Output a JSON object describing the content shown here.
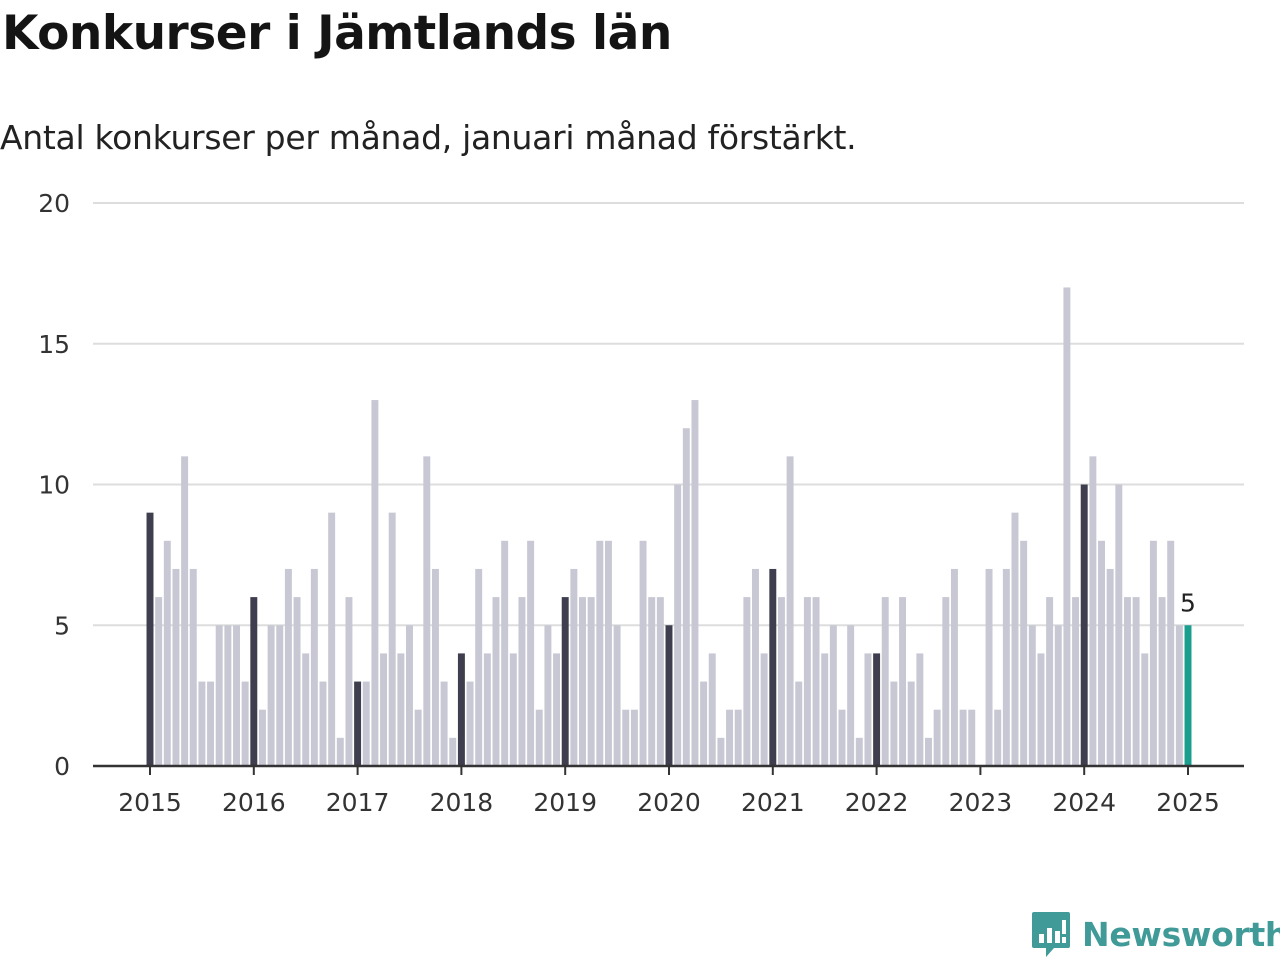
{
  "title": "Konkurser i Jämtlands län",
  "subtitle": "Antal konkurser per månad, januari månad förstärkt.",
  "brand": "Newsworthy",
  "colors": {
    "bar": "#c8c8d4",
    "january": "#3e3e4e",
    "latest": "#1a9e8e",
    "grid": "#dddddd",
    "axis": "#333333",
    "brand": "#3f9a98"
  },
  "chart_data": {
    "type": "bar",
    "ylim": [
      0,
      20
    ],
    "yticks": [
      0,
      5,
      10,
      15,
      20
    ],
    "xticks": [
      "2015",
      "2016",
      "2017",
      "2018",
      "2019",
      "2020",
      "2021",
      "2022",
      "2023",
      "2024",
      "2025"
    ],
    "start": "2015-01",
    "series": [
      {
        "values": [
          9,
          6,
          8,
          7,
          11,
          7,
          3,
          3,
          5,
          5,
          5,
          3,
          6,
          2,
          5,
          5,
          7,
          6,
          4,
          7,
          3,
          9,
          1,
          6,
          3,
          3,
          13,
          4,
          9,
          4,
          5,
          2,
          11,
          7,
          3,
          1,
          4,
          3,
          7,
          4,
          6,
          8,
          4,
          6,
          8,
          2,
          5,
          4,
          6,
          7,
          6,
          6,
          8,
          8,
          5,
          2,
          2,
          8,
          6,
          6,
          5,
          10,
          12,
          13,
          3,
          4,
          1,
          2,
          2,
          6,
          7,
          4,
          7,
          6,
          11,
          3,
          6,
          6,
          4,
          5,
          2,
          5,
          1,
          4,
          4,
          6,
          3,
          6,
          3,
          4,
          1,
          2,
          6,
          7,
          2,
          2,
          0,
          7,
          2,
          7,
          9,
          8,
          5,
          4,
          6,
          5,
          17,
          6,
          10,
          11,
          8,
          7,
          10,
          6,
          6,
          4,
          8,
          6,
          8,
          5,
          5
        ]
      }
    ],
    "annotations": [
      {
        "text": "5"
      }
    ]
  }
}
